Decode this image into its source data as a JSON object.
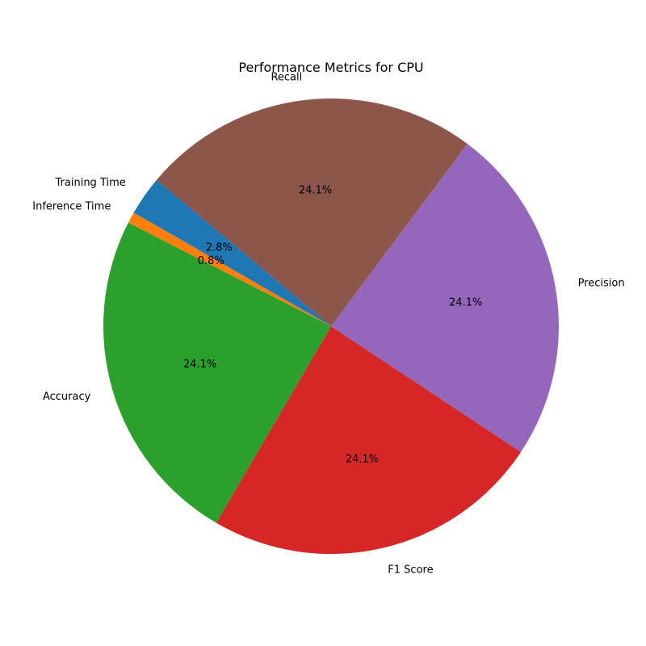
{
  "chart_data": {
    "type": "pie",
    "title": "Performance Metrics for CPU",
    "start_angle": 140,
    "direction": "counterclockwise",
    "slices": [
      {
        "label": "Training Time",
        "value": 2.8,
        "pct_label": "2.8%",
        "color": "#1f77b4"
      },
      {
        "label": "Inference Time",
        "value": 0.8,
        "pct_label": "0.8%",
        "color": "#ff7f0e"
      },
      {
        "label": "Accuracy",
        "value": 24.1,
        "pct_label": "24.1%",
        "color": "#2ca02c"
      },
      {
        "label": "F1 Score",
        "value": 24.1,
        "pct_label": "24.1%",
        "color": "#d62728"
      },
      {
        "label": "Precision",
        "value": 24.1,
        "pct_label": "24.1%",
        "color": "#9467bd"
      },
      {
        "label": "Recall",
        "value": 24.1,
        "pct_label": "24.1%",
        "color": "#8c564b"
      }
    ]
  }
}
